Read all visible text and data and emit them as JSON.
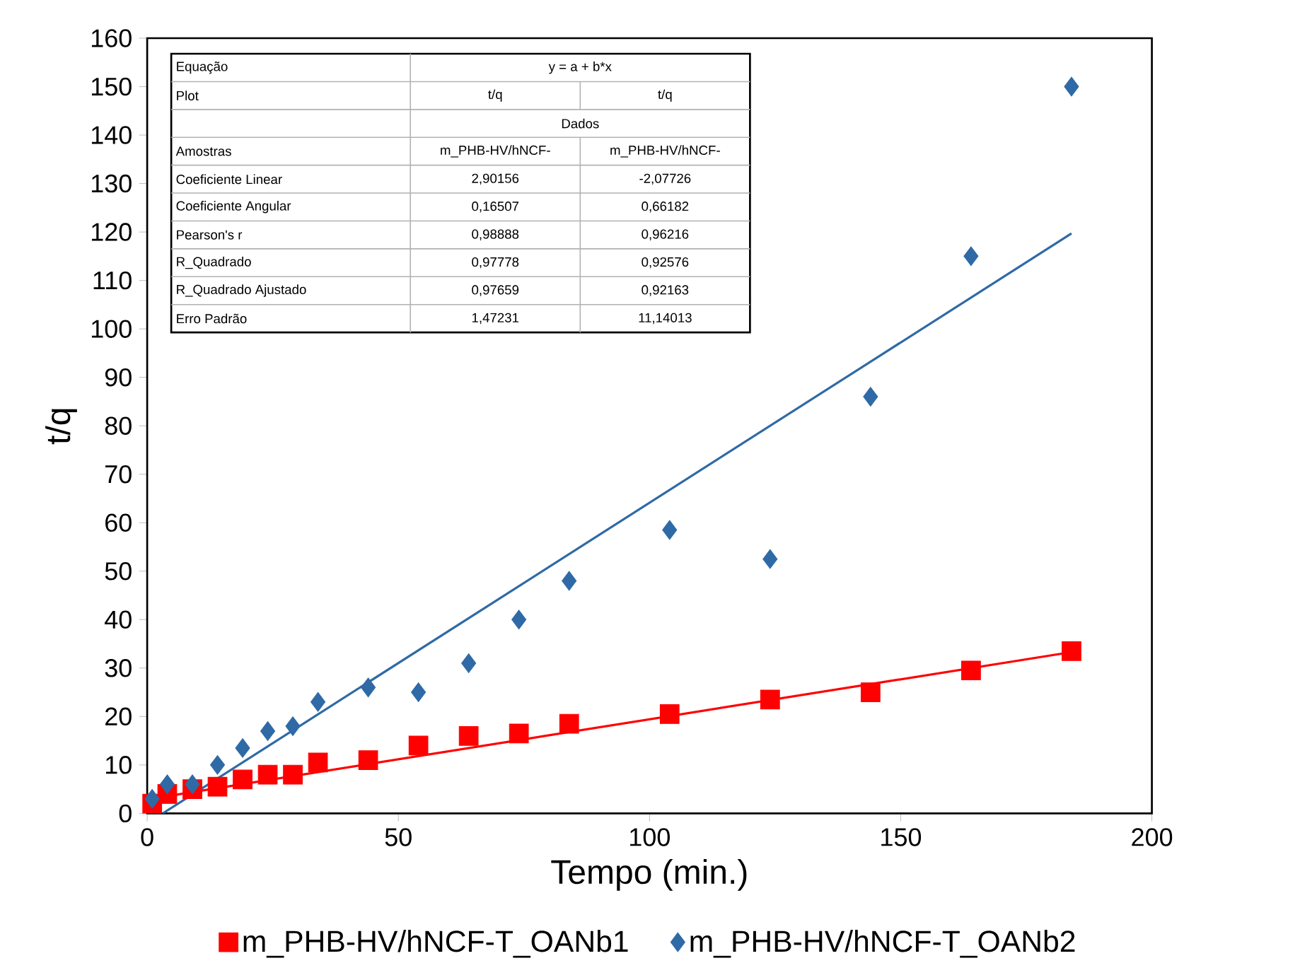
{
  "chart_data": {
    "type": "scatter",
    "xlabel": "Tempo (min.)",
    "ylabel": "t/q",
    "xlim": [
      0,
      200
    ],
    "ylim": [
      0,
      160
    ],
    "xticks": [
      0,
      50,
      100,
      150,
      200
    ],
    "yticks": [
      0,
      10,
      20,
      30,
      40,
      50,
      60,
      70,
      80,
      90,
      100,
      110,
      120,
      130,
      140,
      150,
      160
    ],
    "legend": "bottom",
    "series": [
      {
        "name": "m_PHB-HV/hNCF-T_OANb1",
        "marker": "square",
        "color": "#ff0000",
        "x": [
          1,
          4,
          9,
          14,
          19,
          24,
          29,
          34,
          44,
          54,
          64,
          74,
          84,
          104,
          124,
          144,
          164,
          184
        ],
        "values": [
          2,
          4,
          5,
          5.5,
          7,
          8,
          8,
          10.5,
          11,
          14,
          16,
          16.5,
          18.5,
          20.5,
          23.5,
          25,
          29.5,
          33.5
        ]
      },
      {
        "name": "m_PHB-HV/hNCF-T_OANb2",
        "marker": "diamond",
        "color": "#2f6aa6",
        "x": [
          1,
          4,
          9,
          14,
          19,
          24,
          29,
          34,
          44,
          54,
          64,
          74,
          84,
          104,
          124,
          144,
          164,
          184
        ],
        "values": [
          3,
          6,
          6,
          10,
          13.5,
          17,
          18,
          23,
          26,
          25,
          31,
          40,
          48,
          58.5,
          52.5,
          86,
          115,
          150
        ]
      },
      {
        "type": "line",
        "color": "#ff0000",
        "x": [
          0,
          184
        ],
        "values": [
          2.9,
          33.3
        ]
      },
      {
        "type": "line",
        "color": "#2f6aa6",
        "x": [
          3.1,
          184
        ],
        "values": [
          0,
          119.7
        ]
      }
    ],
    "annotations": [
      "Equação",
      "y = a + b*x",
      "Plot",
      "t/q",
      "t/q",
      "Dados",
      "Amostras",
      "m_PHB-HV/hNCF-",
      "m_PHB-HV/hNCF-",
      "Coeficiente Linear",
      "2,90156",
      "-2,07726",
      "Coeficiente Angular",
      "0,16507",
      "0,66182",
      "Pearson's r",
      "0,98888",
      "0,96216",
      "R_Quadrado",
      "0,97778",
      "0,92576",
      "R_Quadrado Ajustado",
      "0,97659",
      "0,92163",
      "Erro Padrão",
      "1,47231",
      "11,14013"
    ]
  }
}
